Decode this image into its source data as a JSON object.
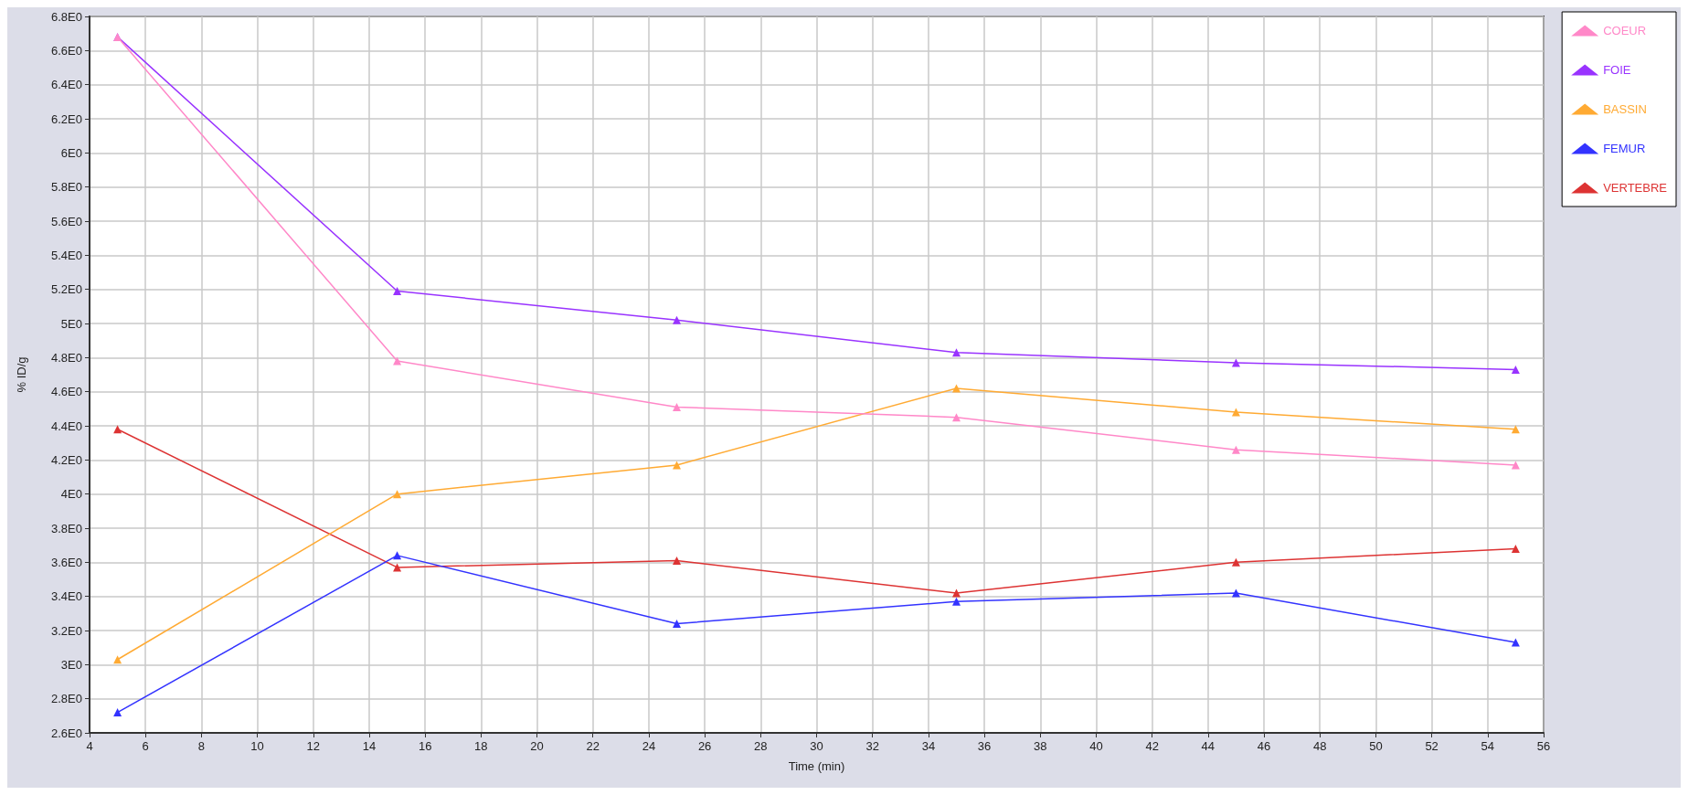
{
  "chart_data": {
    "type": "line",
    "xlabel": "Time (min)",
    "ylabel": "% ID/g",
    "xlim": [
      4,
      56
    ],
    "xticks": [
      4,
      6,
      8,
      10,
      12,
      14,
      16,
      18,
      20,
      22,
      24,
      26,
      28,
      30,
      32,
      34,
      36,
      38,
      40,
      42,
      44,
      46,
      48,
      50,
      52,
      54,
      56
    ],
    "ylim": [
      2.6,
      6.8
    ],
    "yticks": [
      {
        "value": 2.6,
        "label": "2.6E0"
      },
      {
        "value": 2.8,
        "label": "2.8E0"
      },
      {
        "value": 3,
        "label": "3E0"
      },
      {
        "value": 3.2,
        "label": "3.2E0"
      },
      {
        "value": 3.4,
        "label": "3.4E0"
      },
      {
        "value": 3.6,
        "label": "3.6E0"
      },
      {
        "value": 3.8,
        "label": "3.8E0"
      },
      {
        "value": 4,
        "label": "4E0"
      },
      {
        "value": 4.2,
        "label": "4.2E0"
      },
      {
        "value": 4.4,
        "label": "4.4E0"
      },
      {
        "value": 4.6,
        "label": "4.6E0"
      },
      {
        "value": 4.8,
        "label": "4.8E0"
      },
      {
        "value": 5,
        "label": "5E0"
      },
      {
        "value": 5.2,
        "label": "5.2E0"
      },
      {
        "value": 5.4,
        "label": "5.4E0"
      },
      {
        "value": 5.6,
        "label": "5.6E0"
      },
      {
        "value": 5.8,
        "label": "5.8E0"
      },
      {
        "value": 6,
        "label": "6E0"
      },
      {
        "value": 6.2,
        "label": "6.2E0"
      },
      {
        "value": 6.4,
        "label": "6.4E0"
      },
      {
        "value": 6.6,
        "label": "6.6E0"
      },
      {
        "value": 6.8,
        "label": "6.8E0"
      }
    ],
    "x": [
      5,
      15,
      25,
      35,
      45,
      55
    ],
    "series": [
      {
        "name": "COEUR",
        "color": "#ff88c8",
        "values": [
          6.68,
          4.78,
          4.51,
          4.45,
          4.26,
          4.17
        ]
      },
      {
        "name": "FOIE",
        "color": "#9933ff",
        "values": [
          6.68,
          5.19,
          5.02,
          4.83,
          4.77,
          4.73
        ]
      },
      {
        "name": "BASSIN",
        "color": "#ffaa33",
        "values": [
          3.03,
          4.0,
          4.17,
          4.62,
          4.48,
          4.38
        ]
      },
      {
        "name": "FEMUR",
        "color": "#3333ff",
        "values": [
          2.72,
          3.64,
          3.24,
          3.37,
          3.42,
          3.13
        ]
      },
      {
        "name": "VERTEBRE",
        "color": "#dd3333",
        "values": [
          4.38,
          3.57,
          3.61,
          3.42,
          3.6,
          3.68
        ]
      }
    ],
    "grid": true,
    "legend": "top right",
    "marker": "triangle",
    "line_style": "solid"
  }
}
